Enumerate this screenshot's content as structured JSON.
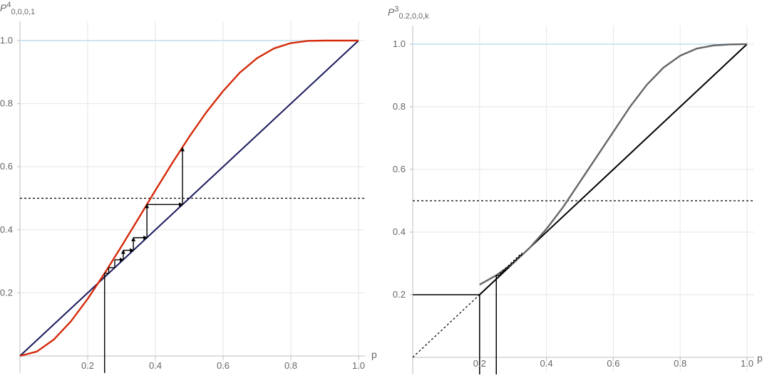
{
  "chart_data": [
    {
      "type": "line",
      "title": "P⁴₀,₀,₀,₁",
      "title_main": "P",
      "title_sup": "4",
      "title_sub": "0,0,0,1",
      "xlabel": "p",
      "xlim": [
        0,
        1
      ],
      "ylim": [
        0,
        1
      ],
      "x_ticks": [
        "0.2",
        "0.4",
        "0.6",
        "0.8",
        "1.0"
      ],
      "y_ticks": [
        "0.2",
        "0.4",
        "0.6",
        "0.8",
        "1.0"
      ],
      "grid": true,
      "colors": {
        "curve": "#d42a0a",
        "diagonal": "#1a1a5e",
        "upper": "#cfe6f2",
        "steps": "#000000"
      },
      "series": [
        {
          "kind": "curve",
          "x": [
            0,
            0.05,
            0.1,
            0.15,
            0.2,
            0.25,
            0.3,
            0.35,
            0.4,
            0.45,
            0.5,
            0.55,
            0.6,
            0.65,
            0.7,
            0.75,
            0.8,
            0.85,
            0.9,
            0.95,
            1.0
          ],
          "y": [
            0,
            0.014,
            0.052,
            0.109,
            0.181,
            0.262,
            0.348,
            0.436,
            0.525,
            0.612,
            0.695,
            0.772,
            0.84,
            0.899,
            0.944,
            0.975,
            0.992,
            0.999,
            1.0,
            1.0,
            1.0
          ]
        },
        {
          "kind": "diagonal",
          "x": [
            0,
            1
          ],
          "y": [
            0,
            1
          ]
        },
        {
          "kind": "reference",
          "style": "dotted",
          "y": 0.5
        },
        {
          "kind": "upper",
          "y": 1.0
        }
      ],
      "cobweb": {
        "start": 0.25,
        "points": [
          [
            0.25,
            0.262
          ],
          [
            0.262,
            0.28
          ],
          [
            0.28,
            0.305
          ],
          [
            0.305,
            0.335
          ],
          [
            0.335,
            0.375
          ],
          [
            0.375,
            0.48
          ],
          [
            0.48,
            0.66
          ]
        ],
        "arrow_steps": [
          3,
          4,
          5,
          6
        ]
      }
    },
    {
      "type": "line",
      "title": "P³₀.₂,₀,₀,k",
      "title_main": "P",
      "title_sup": "3",
      "title_sub": "0.2,0,0,k",
      "xlabel": "p",
      "xlim": [
        0,
        1
      ],
      "ylim": [
        0,
        1
      ],
      "x_ticks": [
        "0.2",
        "0.4",
        "0.6",
        "0.8",
        "1.0"
      ],
      "y_ticks": [
        "0.2",
        "0.4",
        "0.6",
        "0.8",
        "1.0"
      ],
      "grid": true,
      "colors": {
        "curve": "#666666",
        "diagonal": "#000000",
        "upper": "#cfe6f2",
        "steps": "#000000"
      },
      "series": [
        {
          "kind": "curve",
          "x": [
            0.2,
            0.25,
            0.3,
            0.35,
            0.4,
            0.45,
            0.5,
            0.55,
            0.6,
            0.65,
            0.7,
            0.75,
            0.8,
            0.85,
            0.9,
            0.95,
            1.0
          ],
          "y": [
            0.232,
            0.262,
            0.3,
            0.35,
            0.41,
            0.48,
            0.56,
            0.64,
            0.72,
            0.8,
            0.87,
            0.925,
            0.963,
            0.986,
            0.996,
            0.999,
            1.0
          ]
        },
        {
          "kind": "diagonal",
          "x": [
            0.2,
            1
          ],
          "y": [
            0.2,
            1
          ]
        },
        {
          "kind": "diagonal-dotted",
          "x": [
            0,
            0.2
          ],
          "y": [
            0,
            0.2
          ]
        },
        {
          "kind": "reference",
          "style": "dotted",
          "y": 0.5
        },
        {
          "kind": "upper",
          "y": 1.0
        }
      ],
      "guides": {
        "h_at": 0.2,
        "h_to": 0.2,
        "v_lines": [
          [
            0.2,
            0.2
          ],
          [
            0.25,
            0.262
          ]
        ]
      },
      "cobweb": {
        "start": 0.25,
        "points": [
          [
            0.25,
            0.262
          ],
          [
            0.262,
            0.27
          ],
          [
            0.27,
            0.278
          ],
          [
            0.278,
            0.286
          ],
          [
            0.286,
            0.294
          ],
          [
            0.294,
            0.302
          ],
          [
            0.302,
            0.31
          ],
          [
            0.31,
            0.318
          ],
          [
            0.318,
            0.326
          ],
          [
            0.326,
            0.334
          ]
        ],
        "arrow_steps": []
      }
    }
  ]
}
